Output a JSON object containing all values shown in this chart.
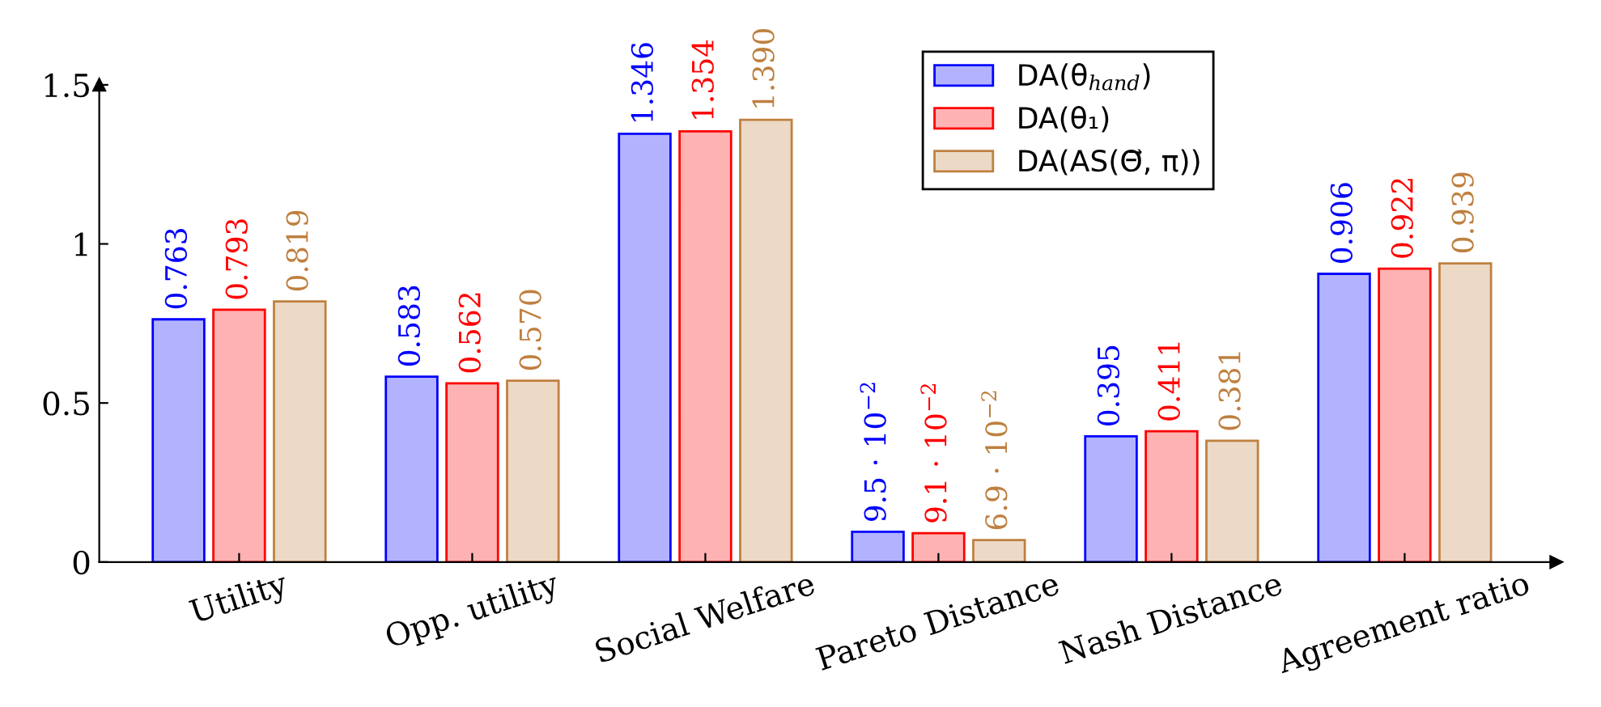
{
  "chart_data": {
    "type": "bar",
    "categories": [
      "Utility",
      "Opp. utility",
      "Social Welfare",
      "Pareto Distance",
      "Nash Distance",
      "Agreement ratio"
    ],
    "series": [
      {
        "name": "DA(θ$_{hand}$)",
        "color": "#0000ff",
        "values": [
          0.763,
          0.583,
          1.346,
          0.095,
          0.395,
          0.906
        ],
        "value_labels": [
          "0.763",
          "0.583",
          "1.346",
          "9.5 · 10$^{−2}$",
          "0.395",
          "0.906"
        ]
      },
      {
        "name": "DA(θ₁)",
        "color": "#ff0000",
        "values": [
          0.793,
          0.562,
          1.354,
          0.091,
          0.411,
          0.922
        ],
        "value_labels": [
          "0.793",
          "0.562",
          "1.354",
          "9.1 · 10$^{−2}$",
          "0.411",
          "0.922"
        ]
      },
      {
        "name": "DA(AS(Θ⃗, π))",
        "color": "#bf8040",
        "values": [
          0.819,
          0.57,
          1.39,
          0.069,
          0.381,
          0.939
        ],
        "value_labels": [
          "0.819",
          "0.570",
          "1.390",
          "6.9 · 10$^{−2}$",
          "0.381",
          "0.939"
        ]
      }
    ],
    "ylim": [
      0,
      1.5
    ],
    "yticks": [
      0,
      0.5,
      1,
      1.5
    ],
    "grid": false,
    "legend": "top"
  }
}
